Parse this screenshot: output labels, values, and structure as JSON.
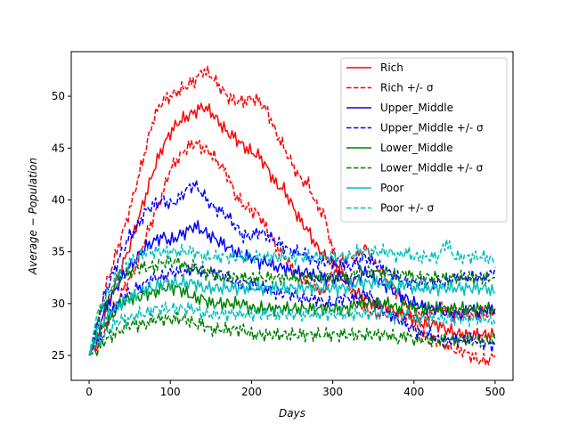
{
  "chart_data": {
    "type": "line",
    "title": "",
    "xlabel": "Days",
    "ylabel": "Average − Population",
    "xlim": [
      -22,
      522
    ],
    "ylim": [
      22.6,
      54.3
    ],
    "xticks": [
      0,
      100,
      200,
      300,
      400,
      500
    ],
    "yticks": [
      25,
      30,
      35,
      40,
      45,
      50
    ],
    "grid": false,
    "legend_position": "top-right",
    "x": [
      0,
      10,
      20,
      30,
      40,
      50,
      60,
      70,
      80,
      90,
      100,
      110,
      120,
      130,
      140,
      150,
      160,
      170,
      180,
      190,
      200,
      210,
      220,
      230,
      240,
      250,
      260,
      270,
      280,
      290,
      300,
      310,
      320,
      330,
      340,
      350,
      360,
      370,
      380,
      390,
      400,
      410,
      420,
      430,
      440,
      450,
      460,
      470,
      480,
      490,
      500
    ],
    "series": [
      {
        "name": "Rich",
        "color": "#ff0000",
        "style": "solid",
        "values": [
          25.0,
          26.5,
          29.0,
          31.5,
          33.5,
          35.5,
          38.0,
          40.5,
          43.0,
          45.0,
          46.5,
          47.5,
          48.0,
          48.5,
          49.0,
          48.5,
          47.5,
          46.5,
          46.0,
          45.2,
          44.6,
          44.2,
          43.0,
          41.5,
          41.0,
          39.5,
          38.0,
          37.0,
          35.5,
          34.5,
          34.0,
          33.0,
          32.0,
          31.0,
          30.5,
          30.0,
          29.8,
          29.5,
          29.0,
          29.0,
          28.5,
          28.0,
          28.0,
          28.0,
          27.5,
          27.2,
          27.0,
          27.0,
          27.0,
          27.0,
          27.0
        ]
      },
      {
        "name": "Rich +/- σ",
        "color": "#ff0000",
        "style": "dashed",
        "values": [
          25.0,
          28.0,
          31.5,
          34.0,
          36.5,
          39.0,
          42.0,
          45.0,
          48.0,
          49.5,
          50.0,
          50.5,
          51.0,
          51.5,
          52.5,
          52.0,
          51.0,
          50.0,
          49.5,
          49.5,
          49.8,
          49.5,
          48.5,
          46.5,
          45.0,
          43.5,
          42.0,
          41.5,
          39.5,
          38.5,
          35.0,
          34.0,
          34.5,
          34.5,
          35.5,
          34.0,
          33.0,
          32.0,
          31.0,
          30.0,
          28.0,
          27.0,
          26.5,
          26.5,
          26.0,
          25.5,
          25.5,
          25.0,
          24.5,
          24.5,
          25.0
        ]
      },
      {
        "name": "",
        "color": "#ff0000",
        "style": "dashed",
        "values": [
          25.0,
          25.5,
          27.5,
          29.5,
          31.0,
          32.5,
          34.0,
          36.5,
          38.5,
          40.5,
          43.0,
          44.0,
          45.0,
          45.5,
          45.0,
          44.5,
          43.5,
          42.5,
          40.5,
          39.5,
          39.0,
          38.5,
          37.0,
          35.5,
          34.5,
          33.5,
          32.5,
          32.0,
          31.5,
          31.0,
          33.5,
          33.5,
          31.5,
          30.5,
          29.5,
          29.0,
          29.0,
          29.0,
          29.0,
          28.5,
          29.0,
          29.0,
          29.0,
          29.5,
          29.5,
          29.0,
          29.0,
          29.0,
          29.0,
          29.0,
          29.0
        ]
      },
      {
        "name": "Upper_Middle",
        "color": "#0000ff",
        "style": "solid",
        "values": [
          25.0,
          27.5,
          29.5,
          31.0,
          32.5,
          33.5,
          34.5,
          35.5,
          36.0,
          36.5,
          36.0,
          36.5,
          37.0,
          37.5,
          37.0,
          36.5,
          36.0,
          35.5,
          35.0,
          34.5,
          34.5,
          34.0,
          34.0,
          33.5,
          33.5,
          33.0,
          33.0,
          33.0,
          32.5,
          32.5,
          32.5,
          32.5,
          32.0,
          32.5,
          33.0,
          32.5,
          32.0,
          31.5,
          31.0,
          30.5,
          30.0,
          29.8,
          29.5,
          29.5,
          29.0,
          29.0,
          29.0,
          29.5,
          29.0,
          29.5,
          29.5
        ]
      },
      {
        "name": "Upper_Middle +/- σ",
        "color": "#0000ff",
        "style": "dashed",
        "values": [
          25.0,
          28.0,
          31.0,
          33.0,
          35.0,
          36.5,
          37.5,
          39.0,
          39.5,
          40.0,
          39.5,
          40.0,
          41.0,
          41.5,
          40.5,
          39.5,
          39.0,
          38.5,
          37.5,
          36.5,
          36.5,
          37.0,
          36.5,
          36.0,
          35.5,
          35.0,
          35.0,
          34.5,
          34.0,
          34.0,
          34.0,
          34.0,
          33.5,
          34.0,
          34.5,
          34.0,
          33.5,
          33.0,
          32.5,
          32.0,
          32.0,
          32.0,
          32.0,
          32.0,
          32.0,
          32.5,
          32.5,
          32.5,
          32.5,
          32.5,
          33.5
        ]
      },
      {
        "name": "",
        "color": "#0000ff",
        "style": "dashed",
        "values": [
          25.0,
          26.5,
          28.0,
          29.5,
          30.5,
          31.0,
          31.5,
          32.0,
          32.5,
          32.5,
          33.0,
          33.0,
          33.0,
          33.5,
          33.0,
          33.0,
          33.0,
          32.5,
          32.0,
          32.0,
          32.0,
          31.5,
          31.5,
          31.0,
          31.0,
          31.0,
          30.5,
          30.5,
          30.5,
          30.0,
          30.0,
          30.5,
          30.5,
          30.5,
          31.0,
          30.5,
          29.5,
          29.0,
          28.5,
          28.0,
          27.5,
          27.0,
          27.0,
          26.5,
          26.5,
          26.5,
          26.5,
          26.5,
          26.5,
          26.0,
          26.0
        ]
      },
      {
        "name": "Lower_Middle",
        "color": "#008000",
        "style": "solid",
        "values": [
          25.0,
          27.0,
          28.0,
          29.0,
          30.0,
          30.5,
          30.5,
          31.0,
          31.0,
          31.5,
          31.5,
          31.5,
          31.0,
          30.5,
          30.5,
          30.0,
          30.0,
          30.0,
          30.0,
          30.0,
          29.5,
          29.5,
          29.5,
          29.5,
          29.5,
          29.5,
          29.5,
          29.5,
          29.5,
          29.5,
          29.5,
          29.5,
          29.5,
          30.0,
          30.0,
          30.0,
          30.0,
          30.0,
          29.5,
          30.0,
          29.5,
          29.5,
          29.5,
          29.5,
          29.5,
          29.5,
          29.5,
          29.5,
          29.5,
          29.5,
          29.5
        ]
      },
      {
        "name": "Lower_Middle +/- σ",
        "color": "#008000",
        "style": "dashed",
        "values": [
          25.0,
          28.5,
          30.0,
          31.5,
          32.5,
          33.0,
          33.5,
          33.5,
          33.5,
          34.0,
          34.0,
          34.0,
          33.5,
          33.5,
          33.0,
          33.0,
          32.5,
          32.5,
          32.5,
          32.5,
          32.5,
          32.5,
          32.5,
          32.5,
          32.5,
          32.5,
          32.5,
          32.5,
          32.5,
          32.5,
          32.5,
          32.5,
          32.5,
          33.0,
          33.0,
          33.0,
          33.0,
          33.0,
          32.5,
          33.0,
          32.5,
          32.5,
          32.5,
          32.5,
          32.5,
          32.5,
          32.5,
          32.5,
          32.5,
          32.5,
          32.5
        ]
      },
      {
        "name": "",
        "color": "#008000",
        "style": "dashed",
        "values": [
          25.0,
          25.5,
          26.5,
          27.0,
          27.5,
          28.0,
          28.0,
          28.0,
          28.5,
          28.5,
          28.5,
          28.5,
          28.5,
          28.0,
          28.0,
          27.5,
          27.5,
          27.5,
          27.5,
          27.5,
          27.0,
          27.0,
          27.0,
          27.0,
          27.0,
          27.0,
          27.0,
          27.0,
          27.0,
          27.0,
          27.0,
          27.0,
          27.0,
          27.0,
          27.0,
          27.0,
          27.0,
          27.0,
          26.5,
          27.0,
          26.5,
          26.5,
          26.5,
          26.5,
          26.5,
          26.5,
          26.5,
          26.5,
          26.5,
          26.5,
          26.5
        ]
      },
      {
        "name": "Poor",
        "color": "#00bfbf",
        "style": "solid",
        "values": [
          25.0,
          27.5,
          28.5,
          29.5,
          30.0,
          30.5,
          31.0,
          31.5,
          31.5,
          32.0,
          32.0,
          32.0,
          32.0,
          32.0,
          31.5,
          31.5,
          31.5,
          31.5,
          31.5,
          31.5,
          31.5,
          31.5,
          31.5,
          31.5,
          31.5,
          31.5,
          31.5,
          31.5,
          31.5,
          31.5,
          31.5,
          31.5,
          31.5,
          32.0,
          32.0,
          32.0,
          32.0,
          32.0,
          31.5,
          32.0,
          31.5,
          31.5,
          31.5,
          31.5,
          31.5,
          31.5,
          31.5,
          31.5,
          31.5,
          31.5,
          31.0
        ]
      },
      {
        "name": "Poor +/- σ",
        "color": "#00bfbf",
        "style": "dashed",
        "values": [
          25.0,
          29.0,
          30.5,
          32.0,
          33.5,
          34.0,
          34.5,
          35.0,
          35.0,
          35.0,
          35.0,
          35.0,
          35.0,
          35.0,
          34.5,
          34.5,
          34.5,
          34.5,
          34.5,
          34.5,
          34.5,
          34.5,
          34.5,
          34.5,
          34.5,
          34.5,
          34.5,
          34.5,
          34.5,
          34.5,
          34.5,
          34.5,
          34.5,
          35.0,
          35.0,
          35.0,
          35.0,
          35.0,
          34.5,
          35.0,
          34.5,
          34.5,
          34.5,
          34.5,
          36.0,
          34.5,
          34.5,
          34.5,
          34.5,
          34.5,
          34.0
        ]
      },
      {
        "name": "",
        "color": "#00bfbf",
        "style": "dashed",
        "values": [
          25.0,
          26.0,
          27.0,
          28.0,
          28.5,
          28.5,
          29.0,
          29.0,
          29.5,
          29.5,
          29.5,
          29.5,
          29.5,
          29.5,
          29.0,
          29.0,
          29.0,
          29.0,
          29.0,
          29.0,
          29.0,
          29.0,
          29.0,
          29.0,
          29.0,
          29.0,
          29.0,
          29.0,
          29.0,
          29.0,
          29.0,
          29.0,
          29.0,
          29.0,
          29.0,
          29.0,
          29.0,
          29.0,
          28.5,
          29.0,
          28.5,
          28.5,
          28.5,
          28.5,
          28.5,
          28.5,
          28.5,
          28.5,
          28.5,
          28.5,
          28.0
        ]
      }
    ]
  }
}
